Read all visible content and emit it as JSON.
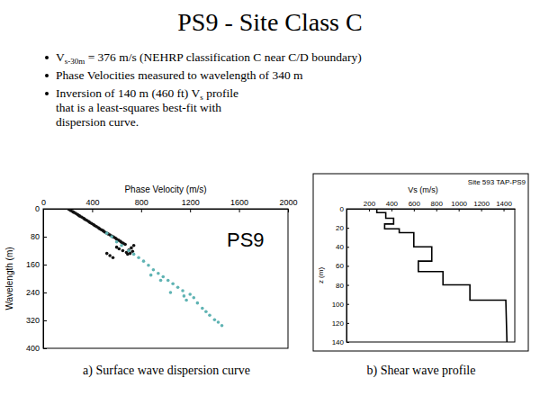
{
  "title": "PS9 - Site Class C",
  "bullets": [
    [
      {
        "text": "V",
        "sub": "s-30m",
        "after": " = 376 m/s (NEHRP classification C near C/D boundary)"
      }
    ],
    [
      {
        "text": "Phase Velocities measured to wavelength of 340 m"
      }
    ],
    [
      {
        "text": "Inversion of 140 m (460 ft) V",
        "sub": "s",
        "after": " profile"
      },
      {
        "text": "that is a least-squares best-fit with"
      },
      {
        "text": "dispersion curve."
      }
    ]
  ],
  "chart_data": [
    {
      "type": "scatter",
      "xlabel": "Phase Velocity (m/s)",
      "ylabel": "Wavelength (m)",
      "annotation": "PS9",
      "caption": "a) Surface wave dispersion curve",
      "xlim": [
        0,
        2000
      ],
      "xticks": [
        0,
        400,
        800,
        1200,
        1600,
        2000
      ],
      "ylim": [
        0,
        400
      ],
      "yticks": [
        0,
        80,
        160,
        240,
        320,
        400
      ],
      "series": [
        {
          "color": "#111111",
          "marker": "circle",
          "x": [
            210,
            225,
            240,
            250,
            265,
            280,
            290,
            300,
            315,
            330,
            340,
            355,
            370,
            380,
            395,
            410,
            420,
            435,
            450,
            460,
            475,
            490,
            500,
            515,
            530,
            545,
            560,
            575,
            590,
            600,
            615,
            630,
            640,
            655,
            670,
            600,
            620,
            650,
            680,
            700,
            720,
            740,
            690,
            710,
            730,
            520,
            545,
            570
          ],
          "y": [
            2,
            5,
            8,
            10,
            13,
            16,
            19,
            21,
            24,
            27,
            30,
            33,
            36,
            39,
            42,
            45,
            48,
            51,
            54,
            57,
            60,
            63,
            66,
            69,
            72,
            75,
            78,
            81,
            84,
            87,
            90,
            93,
            96,
            99,
            102,
            110,
            115,
            120,
            125,
            118,
            112,
            105,
            130,
            128,
            122,
            128,
            134,
            140
          ]
        },
        {
          "color": "#5fb3b3",
          "marker": "circle",
          "x": [
            520,
            560,
            600,
            640,
            700,
            740,
            780,
            820,
            860,
            900,
            940,
            980,
            1020,
            1060,
            1100,
            1140,
            1150,
            1170,
            1200,
            1230,
            1260,
            1300,
            1330,
            1360,
            1400,
            1430,
            1460,
            880,
            960,
            1040
          ],
          "y": [
            70,
            80,
            95,
            105,
            120,
            130,
            140,
            150,
            162,
            175,
            185,
            195,
            205,
            215,
            225,
            235,
            250,
            262,
            245,
            255,
            270,
            285,
            295,
            305,
            318,
            325,
            335,
            190,
            205,
            240
          ]
        }
      ]
    },
    {
      "type": "line",
      "title": "Site 593 TAP-PS9",
      "xlabel": "Vs (m/s)",
      "ylabel": "z (m)",
      "caption": "b) Shear wave profile",
      "xlim": [
        0,
        1500
      ],
      "xticks": [
        200,
        400,
        600,
        800,
        1000,
        1200,
        1400
      ],
      "ylim": [
        0,
        140
      ],
      "yticks": [
        0,
        20,
        40,
        60,
        80,
        100,
        120,
        140
      ],
      "series": [
        {
          "color": "#000000",
          "line_style": "solid",
          "x": [
            270,
            270,
            350,
            350,
            420,
            420,
            340,
            340,
            470,
            470,
            600,
            600,
            760,
            760,
            640,
            640,
            860,
            860,
            1100,
            1100,
            1420,
            1430
          ],
          "y": [
            0,
            4,
            4,
            10,
            10,
            16,
            16,
            21,
            21,
            25,
            25,
            40,
            40,
            55,
            55,
            66,
            66,
            80,
            80,
            96,
            96,
            140
          ]
        }
      ]
    }
  ]
}
